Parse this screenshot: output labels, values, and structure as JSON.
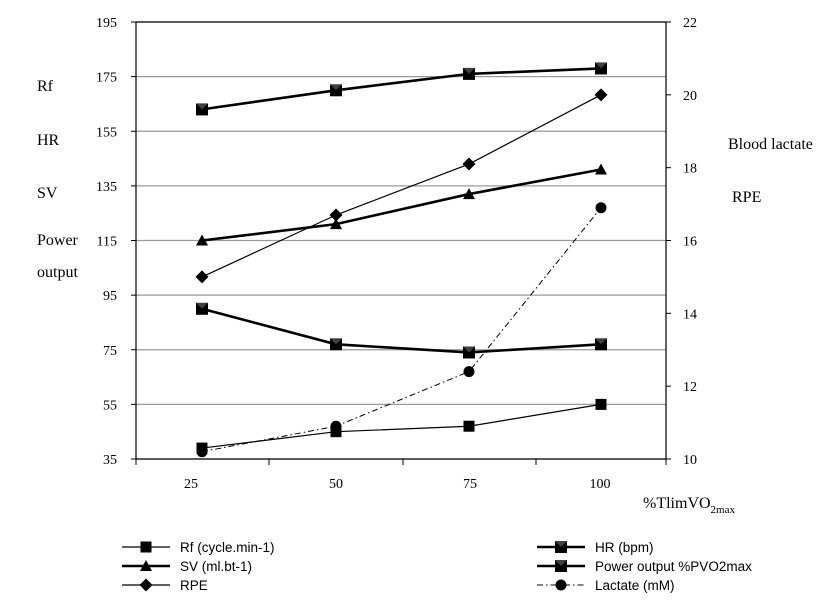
{
  "chart_data": {
    "type": "line",
    "x": [
      25,
      50,
      75,
      100
    ],
    "x_ticks": [
      "25",
      "50",
      "75",
      "100"
    ],
    "xlabel": "%TlimVO",
    "xlabel_sub": "2max",
    "left_axis_labels": [
      "Rf",
      "HR",
      "SV",
      "Power",
      "output"
    ],
    "right_axis_labels": [
      "Blood lactate",
      "RPE"
    ],
    "ylim_left": [
      35,
      195
    ],
    "yticks_left": [
      "35",
      "55",
      "75",
      "95",
      "115",
      "135",
      "155",
      "175",
      "195"
    ],
    "ylim_right": [
      10,
      22
    ],
    "yticks_right": [
      "10",
      "12",
      "14",
      "16",
      "18",
      "20",
      "22"
    ],
    "grid": true,
    "legend_position": "bottom",
    "series": [
      {
        "name": "Rf (cycle.min-1)",
        "axis": "left",
        "marker": "square",
        "style": "thin",
        "values": [
          39,
          45,
          47,
          55
        ]
      },
      {
        "name": "HR (bpm)",
        "axis": "left",
        "marker": "hourglass-square",
        "style": "thick",
        "values": [
          163,
          170,
          176,
          178
        ]
      },
      {
        "name": "SV (ml.bt-1)",
        "axis": "left",
        "marker": "triangle",
        "style": "thick",
        "values": [
          115,
          121,
          132,
          141
        ]
      },
      {
        "name": "Power output %PVO2max",
        "axis": "left",
        "marker": "hourglass-square",
        "style": "thick",
        "values": [
          90,
          77,
          74,
          77
        ]
      },
      {
        "name": "RPE",
        "axis": "right",
        "marker": "diamond",
        "style": "thin",
        "values": [
          15,
          16.7,
          18.1,
          20
        ]
      },
      {
        "name": "Lactate (mM)",
        "axis": "right",
        "marker": "circle",
        "style": "dashdot",
        "values": [
          10.2,
          10.9,
          12.4,
          16.9
        ]
      }
    ],
    "legend_order": [
      0,
      1,
      2,
      3,
      4,
      5
    ]
  }
}
